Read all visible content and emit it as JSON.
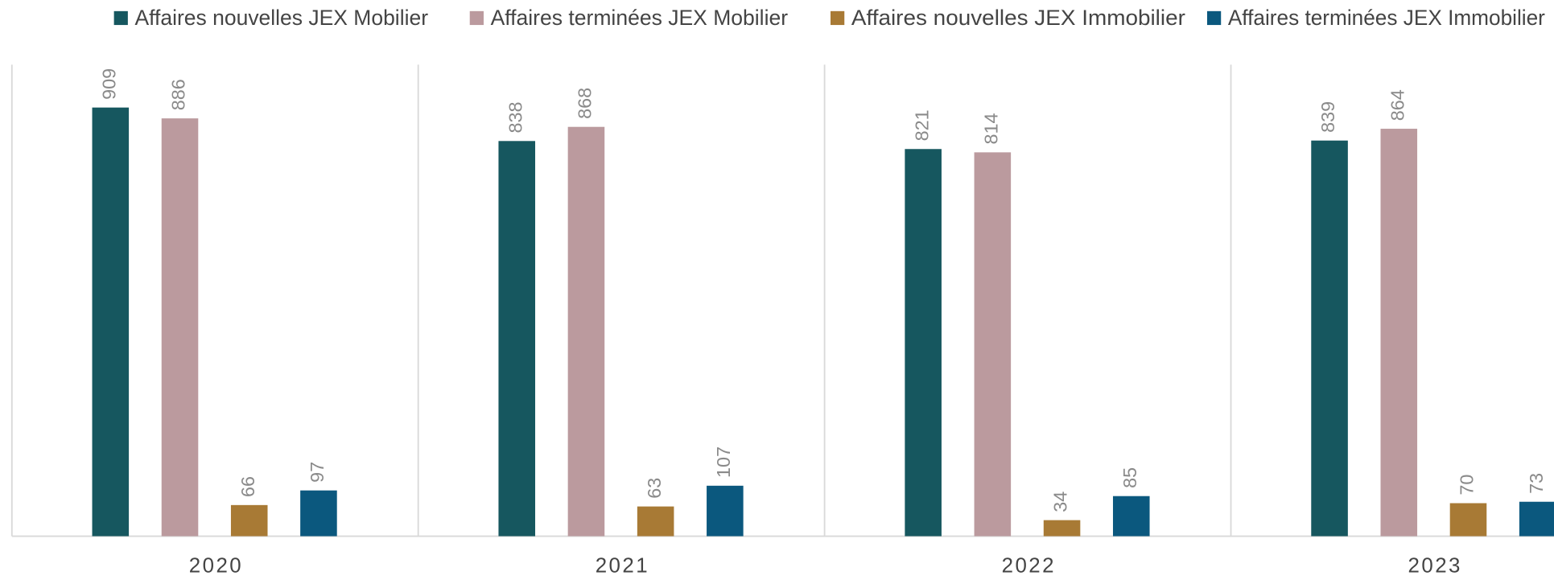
{
  "chart_data": {
    "type": "bar",
    "categories": [
      "2020",
      "2021",
      "2022",
      "2023"
    ],
    "series": [
      {
        "name": "Affaires nouvelles JEX Mobilier",
        "color": "#16575f",
        "values": [
          909,
          838,
          821,
          839
        ]
      },
      {
        "name": "Affaires terminées JEX Mobilier",
        "color": "#bb9a9e",
        "values": [
          886,
          868,
          814,
          864
        ]
      },
      {
        "name": "Affaires nouvelles JEX Immobilier",
        "color": "#a87a35",
        "values": [
          66,
          63,
          34,
          70
        ]
      },
      {
        "name": "Affaires terminées JEX Immobilier",
        "color": "#0b587e",
        "values": [
          97,
          107,
          85,
          73
        ]
      }
    ],
    "ylim": [
      0,
      1000
    ],
    "legend": "top"
  }
}
